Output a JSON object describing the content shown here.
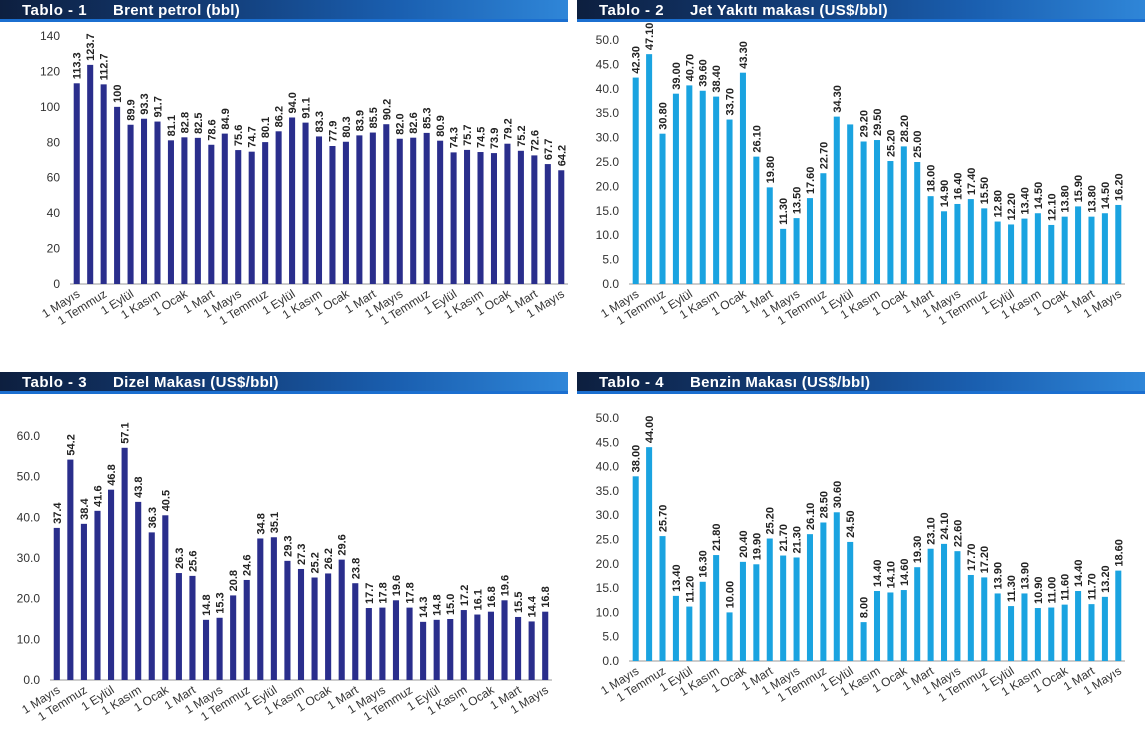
{
  "tables": [
    {
      "number": "Tablo - 1",
      "title": "Brent petrol (bbl)"
    },
    {
      "number": "Tablo - 2",
      "title": "Jet Yakıtı makası (US$/bbl)"
    },
    {
      "number": "Tablo - 3",
      "title": "Dizel Makası (US$/bbl)"
    },
    {
      "number": "Tablo - 4",
      "title": "Benzin Makası (US$/bbl)"
    }
  ],
  "chart_data": [
    {
      "type": "bar",
      "title": "Brent petrol (bbl)",
      "color": "#2a2e8c",
      "ylim": [
        0,
        140
      ],
      "ytick_step": 20,
      "ytick_decimals": 0,
      "label_decimals": 1,
      "grid": false,
      "x_labels": [
        "1 Mayıs",
        "1 Temmuz",
        "1 Eylül",
        "1 Kasım",
        "1 Ocak",
        "1 Mart",
        "1 Mayıs",
        "1 Temmuz",
        "1 Eylül",
        "1 Kasım",
        "1 Ocak",
        "1 Mart",
        "1 Mayıs",
        "1 Temmuz",
        "1 Eylül",
        "1 Kasım",
        "1 Ocak",
        "1 Mart",
        "1 Mayıs"
      ],
      "values": [
        113.3,
        123.7,
        112.7,
        100.0,
        89.9,
        93.3,
        91.7,
        81.1,
        82.8,
        82.5,
        78.6,
        84.9,
        75.6,
        74.7,
        80.1,
        86.2,
        94.0,
        91.1,
        83.3,
        77.9,
        80.3,
        83.9,
        85.5,
        90.2,
        82.0,
        82.6,
        85.3,
        80.9,
        74.3,
        75.7,
        74.5,
        73.9,
        79.2,
        75.2,
        72.6,
        67.7,
        64.2
      ],
      "data_labels": [
        "113.3",
        "123.7",
        "112.7",
        "100",
        "89.9",
        "93.3",
        "91.7",
        "81.1",
        "82.8",
        "82.5",
        "78.6",
        "84.9",
        "75.6",
        "74.7",
        "80.1",
        "86.2",
        "94.0",
        "91.1",
        "83.3",
        "77.9",
        "80.3",
        "83.9",
        "85.5",
        "90.2",
        "82.0",
        "82.6",
        "85.3",
        "80.9",
        "74.3",
        "75.7",
        "74.5",
        "73.9",
        "79.2",
        "75.2",
        "72.6",
        "67.7",
        "64.2"
      ]
    },
    {
      "type": "bar",
      "title": "Jet Yakıtı makası (US$/bbl)",
      "color": "#1aa3e0",
      "ylim": [
        0,
        50
      ],
      "ytick_step": 5,
      "ytick_decimals": 1,
      "label_decimals": 2,
      "grid": false,
      "x_labels": [
        "1 Mayıs",
        "1 Temmuz",
        "1 Eylül",
        "1 Kasım",
        "1 Ocak",
        "1 Mart",
        "1 Mayıs",
        "1 Temmuz",
        "1 Eylül",
        "1 Kasım",
        "1 Ocak",
        "1 Mart",
        "1 Mayıs",
        "1 Temmuz",
        "1 Eylül",
        "1 Kasım",
        "1 Ocak",
        "1 Mart",
        "1 Mayıs"
      ],
      "values": [
        42.3,
        47.1,
        30.8,
        39.0,
        40.7,
        39.6,
        38.4,
        33.7,
        43.3,
        26.1,
        19.8,
        11.3,
        13.5,
        17.6,
        22.7,
        34.3,
        32.7,
        29.2,
        29.5,
        25.2,
        28.2,
        25.0,
        18.0,
        14.9,
        16.4,
        17.4,
        15.5,
        12.8,
        12.2,
        13.4,
        14.5,
        12.1,
        13.8,
        15.9,
        13.8,
        14.5,
        16.2
      ],
      "data_labels": [
        "42.30",
        "47.10",
        "30.80",
        "39.00",
        "40.70",
        "39.60",
        "38.40",
        "33.70",
        "43.30",
        "26.10",
        "19.80",
        "11.30",
        "13.50",
        "17.60",
        "22.70",
        "34.30",
        "",
        "29.20",
        "29.50",
        "25.20",
        "28.20",
        "25.00",
        "18.00",
        "14.90",
        "16.40",
        "17.40",
        "15.50",
        "12.80",
        "12.20",
        "13.40",
        "14.50",
        "12.10",
        "13.80",
        "15.90",
        "13.80",
        "14.50",
        "16.20"
      ]
    },
    {
      "type": "bar",
      "title": "Dizel Makası (US$/bbl)",
      "color": "#2a2e8c",
      "ylim": [
        0,
        60
      ],
      "ytick_step": 10,
      "ytick_decimals": 1,
      "label_decimals": 1,
      "grid": false,
      "x_labels": [
        "1 Mayıs",
        "1 Temmuz",
        "1 Eylül",
        "1 Kasım",
        "1 Ocak",
        "1 Mart",
        "1 Mayıs",
        "1 Temmuz",
        "1 Eylül",
        "1 Kasım",
        "1 Ocak",
        "1 Mart",
        "1 Mayıs",
        "1 Temmuz",
        "1 Eylül",
        "1 Kasım",
        "1 Ocak",
        "1 Mart",
        "1 Mayıs"
      ],
      "values": [
        37.4,
        54.2,
        38.4,
        41.6,
        46.8,
        57.1,
        43.8,
        36.3,
        40.5,
        26.3,
        25.6,
        14.8,
        15.3,
        20.8,
        24.6,
        34.8,
        35.1,
        29.3,
        27.3,
        25.2,
        26.2,
        29.6,
        23.8,
        17.7,
        17.8,
        19.6,
        17.8,
        14.3,
        14.8,
        15.0,
        17.2,
        16.1,
        16.8,
        19.6,
        15.5,
        14.4,
        16.8
      ],
      "data_labels": [
        "37.4",
        "54.2",
        "38.4",
        "41.6",
        "46.8",
        "57.1",
        "43.8",
        "36.3",
        "40.5",
        "26.3",
        "25.6",
        "14.8",
        "15.3",
        "20.8",
        "24.6",
        "34.8",
        "35.1",
        "29.3",
        "27.3",
        "25.2",
        "26.2",
        "29.6",
        "23.8",
        "17.7",
        "17.8",
        "19.6",
        "17.8",
        "14.3",
        "14.8",
        "15.0",
        "17.2",
        "16.1",
        "16.8",
        "19.6",
        "15.5",
        "14.4",
        "16.8"
      ]
    },
    {
      "type": "bar",
      "title": "Benzin Makası (US$/bbl)",
      "color": "#1aa3e0",
      "ylim": [
        0,
        50
      ],
      "ytick_step": 5,
      "ytick_decimals": 1,
      "label_decimals": 2,
      "grid": false,
      "x_labels": [
        "1 Mayıs",
        "1 Temmuz",
        "1 Eylül",
        "1 Kasım",
        "1 Ocak",
        "1 Mart",
        "1 Mayıs",
        "1 Temmuz",
        "1 Eylül",
        "1 Kasım",
        "1 Ocak",
        "1 Mart",
        "1 Mayıs",
        "1 Temmuz",
        "1 Eylül",
        "1 Kasım",
        "1 Ocak",
        "1 Mart",
        "1 Mayıs"
      ],
      "values": [
        38.0,
        44.0,
        25.7,
        13.4,
        11.2,
        16.3,
        21.8,
        10.0,
        20.4,
        19.9,
        25.2,
        21.7,
        21.3,
        26.1,
        28.5,
        30.6,
        24.5,
        8.0,
        14.4,
        14.1,
        14.6,
        19.3,
        23.1,
        24.1,
        22.6,
        17.7,
        17.2,
        13.9,
        11.3,
        13.9,
        10.9,
        11.0,
        11.6,
        14.4,
        11.7,
        13.2,
        18.6
      ],
      "data_labels": [
        "38.00",
        "44.00",
        "25.70",
        "13.40",
        "11.20",
        "16.30",
        "21.80",
        "10.00",
        "20.40",
        "19.90",
        "25.20",
        "21.70",
        "21.30",
        "26.10",
        "28.50",
        "30.60",
        "24.50",
        "8.00",
        "14.40",
        "14.10",
        "14.60",
        "19.30",
        "23.10",
        "24.10",
        "22.60",
        "17.70",
        "17.20",
        "13.90",
        "11.30",
        "13.90",
        "10.90",
        "11.00",
        "11.60",
        "14.40",
        "11.70",
        "13.20",
        "18.60"
      ]
    }
  ]
}
